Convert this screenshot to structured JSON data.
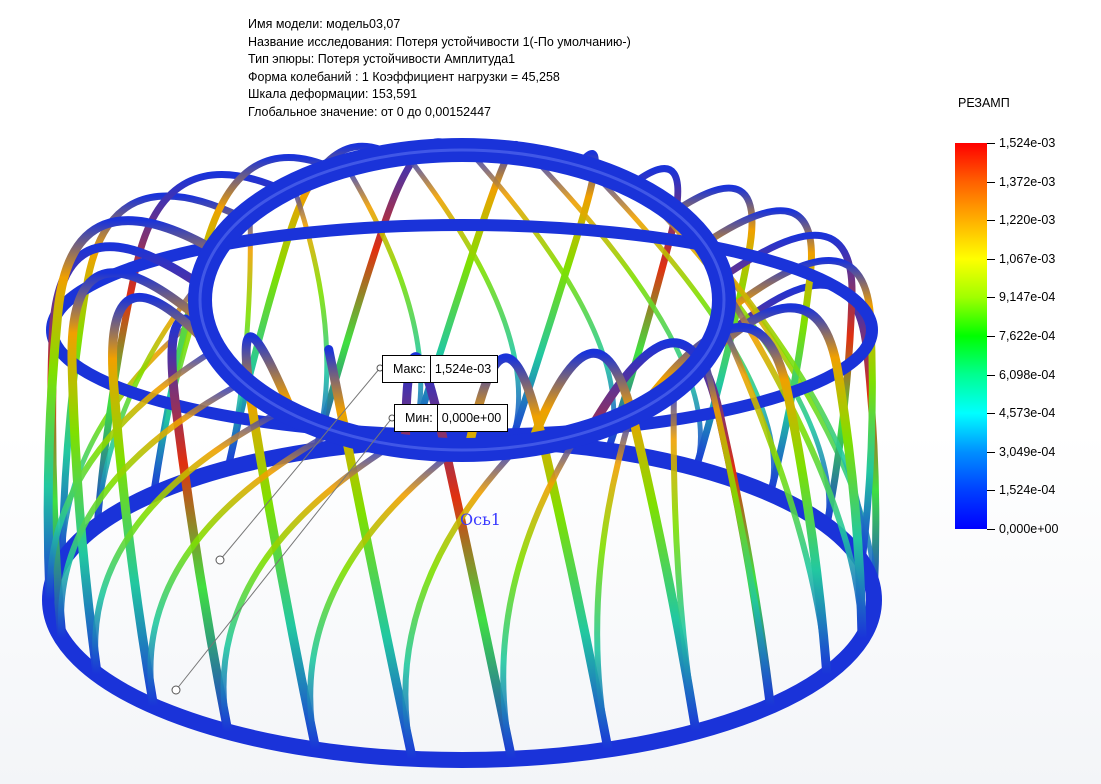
{
  "study_info": {
    "model_name": "Имя модели: модель03,07",
    "study_name": "Название исследования: Потеря устойчивости 1(-По умолчанию-)",
    "plot_type": "Тип эпюры: Потеря устойчивости Амплитуда1",
    "mode_shape": "Форма колебаний : 1  Коэффициент нагрузки = 45,258",
    "deformation_scale": "Шкала деформации: 153,591",
    "global_value": "Глобальное значение: от 0 до 0,00152447"
  },
  "legend": {
    "title": "РЕЗАМП",
    "ticks": [
      "1,524e-03",
      "1,372e-03",
      "1,220e-03",
      "1,067e-03",
      "9,147e-04",
      "7,622e-04",
      "6,098e-04",
      "4,573e-04",
      "3,049e-04",
      "1,524e-04",
      "0,000e+00"
    ],
    "max_color": "#ff0000",
    "min_color": "#0000ff"
  },
  "probes": {
    "max": {
      "label": "Макс:",
      "value": "1,524e-03"
    },
    "min": {
      "label": "Мин:",
      "value": "0,000e+00"
    }
  },
  "axis_label": "Ось1",
  "colors": {
    "ring": "#1a33d9",
    "background": "#ffffff"
  }
}
